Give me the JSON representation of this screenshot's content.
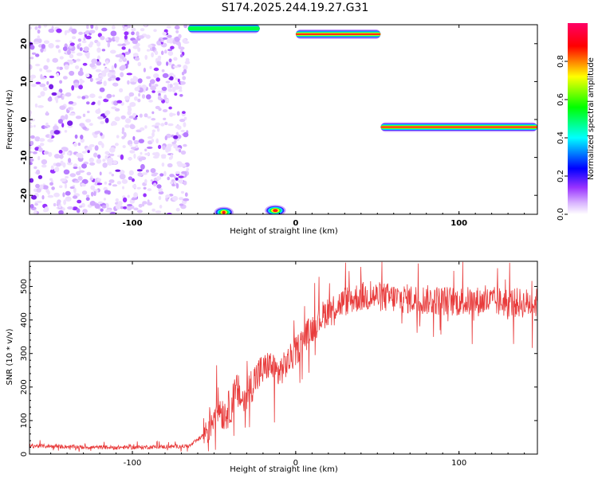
{
  "title": "S174.2025.244.19.27.G31",
  "chart_data": [
    {
      "type": "heatmap",
      "xlabel": "Height of straight line (km)",
      "ylabel": "Frequency (Hz)",
      "xlim": [
        -163,
        148
      ],
      "ylim": [
        -25,
        25
      ],
      "x_ticks": [
        -100,
        0,
        100
      ],
      "y_ticks": [
        -20,
        -10,
        0,
        10,
        20
      ],
      "colorbar": {
        "label": "Normalized spectral amplitude",
        "range": [
          0,
          1
        ],
        "ticks": [
          0.0,
          0.2,
          0.4,
          0.6,
          0.8
        ],
        "colors": [
          "#ffffff",
          "#e6ccff",
          "#9933ff",
          "#0000ff",
          "#00ffff",
          "#00ff00",
          "#ffff00",
          "#ff0000",
          "#ff0066"
        ]
      },
      "features": [
        {
          "kind": "noise",
          "x": [
            -163,
            -66
          ],
          "freq": [
            -25,
            25
          ],
          "amplitude": 0.15
        },
        {
          "kind": "line",
          "x": [
            -66,
            -22
          ],
          "freq": 24,
          "amplitude": 0.5
        },
        {
          "kind": "line",
          "x": [
            0,
            52
          ],
          "freq": 22.5,
          "amplitude": 1.0
        },
        {
          "kind": "line",
          "x": [
            52,
            148
          ],
          "freq": -2,
          "amplitude": 1.0
        },
        {
          "kind": "blob",
          "x": [
            -48,
            -40
          ],
          "freq": -24.5,
          "amplitude": 0.9
        },
        {
          "kind": "blob",
          "x": [
            -17,
            -8
          ],
          "freq": -24,
          "amplitude": 0.95
        }
      ]
    },
    {
      "type": "line",
      "xlabel": "Height of straight line (km)",
      "ylabel": "SNR (10 * v/v)",
      "xlim": [
        -163,
        148
      ],
      "ylim": [
        0,
        575
      ],
      "x_ticks": [
        -100,
        0,
        100
      ],
      "y_ticks": [
        0,
        100,
        200,
        300,
        400,
        500
      ],
      "color": "#e83c3c",
      "series": [
        {
          "x": [
            -163,
            -140,
            -120,
            -100,
            -80,
            -65,
            -58,
            -52,
            -48,
            -44,
            -40,
            -36,
            -32,
            -28,
            -24,
            -20,
            -16,
            -12,
            -8,
            -4,
            0,
            5,
            10,
            15,
            20,
            30,
            40,
            50,
            60,
            80,
            100,
            120,
            140,
            148
          ],
          "values": [
            25,
            22,
            20,
            20,
            22,
            24,
            50,
            95,
            150,
            120,
            140,
            190,
            155,
            200,
            230,
            250,
            270,
            240,
            255,
            280,
            305,
            345,
            375,
            405,
            430,
            455,
            470,
            470,
            465,
            460,
            455,
            455,
            450,
            450
          ]
        }
      ]
    }
  ]
}
